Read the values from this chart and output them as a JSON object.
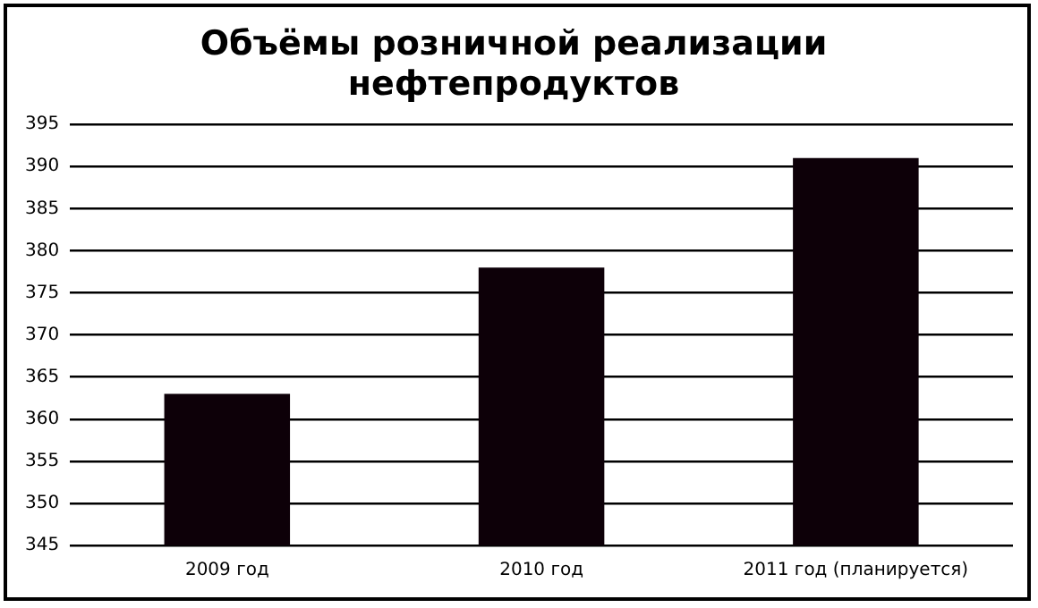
{
  "chart_data": {
    "type": "bar",
    "title": "Объёмы розничной реализации нефтепродуктов",
    "categories": [
      "2009 год",
      "2010 год",
      "2011 год (планируется)"
    ],
    "values": [
      363,
      378,
      391
    ],
    "color": "#0d0008",
    "ylim": [
      345,
      395
    ],
    "yticks": [
      345,
      350,
      355,
      360,
      365,
      370,
      375,
      380,
      385,
      390,
      395
    ],
    "grid": "y",
    "legend": false
  }
}
